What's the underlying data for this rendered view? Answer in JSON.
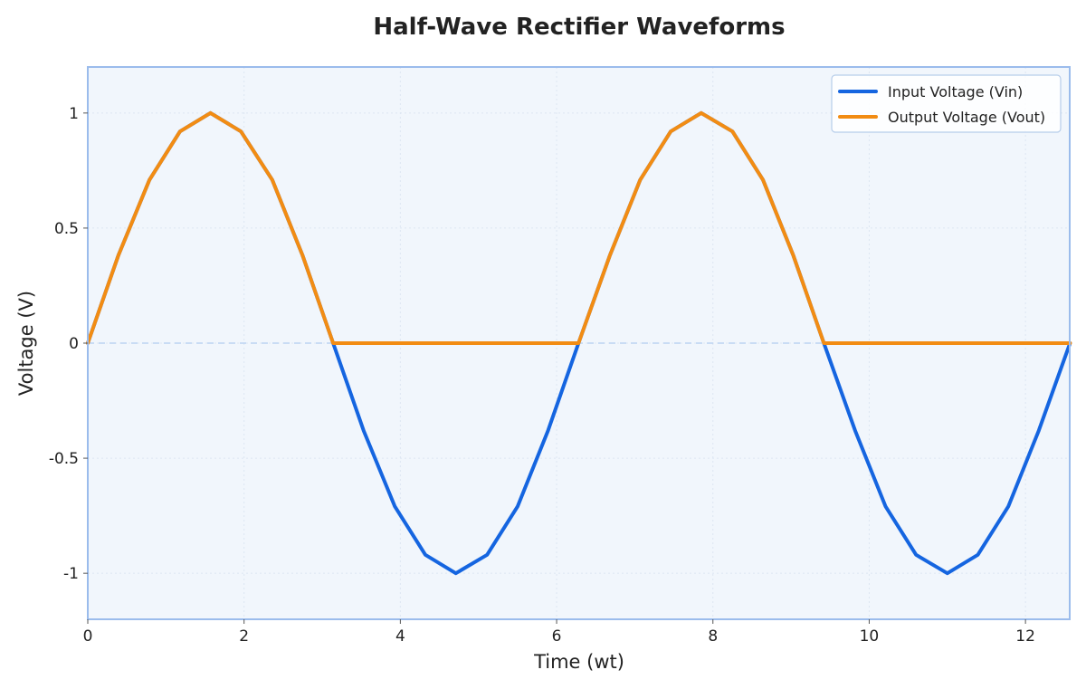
{
  "chart_data": {
    "type": "line",
    "title": "Half-Wave Rectifier Waveforms",
    "xlabel": "Time (wt)",
    "ylabel": "Voltage (V)",
    "xlim": [
      0,
      12.566
    ],
    "ylim": [
      -1.2,
      1.2
    ],
    "x_ticks": [
      0,
      2,
      4,
      6,
      8,
      10,
      12
    ],
    "x_tick_labels": [
      "0",
      "2",
      "4",
      "6",
      "8",
      "10",
      "12"
    ],
    "y_ticks": [
      1,
      0.5,
      0,
      -0.5,
      -1
    ],
    "y_tick_labels": [
      "1",
      "0.5",
      "0",
      "-0.5",
      "-1"
    ],
    "grid": true,
    "zero_reference_line": true,
    "legend_position": "top-right",
    "x": [
      0,
      0.39,
      0.79,
      1.18,
      1.57,
      1.96,
      2.36,
      2.75,
      3.14,
      3.53,
      3.93,
      4.32,
      4.71,
      5.11,
      5.5,
      5.89,
      6.28,
      6.68,
      7.07,
      7.46,
      7.85,
      8.25,
      8.64,
      9.03,
      9.42,
      9.82,
      10.21,
      10.6,
      11.0,
      11.39,
      11.78,
      12.17,
      12.57
    ],
    "series": [
      {
        "name": "Input Voltage (Vin)",
        "color": "#1565e0",
        "values": [
          0,
          0.38,
          0.71,
          0.92,
          1.0,
          0.92,
          0.71,
          0.38,
          0,
          -0.38,
          -0.71,
          -0.92,
          -1.0,
          -0.92,
          -0.71,
          -0.38,
          0,
          0.38,
          0.71,
          0.92,
          1.0,
          0.92,
          0.71,
          0.38,
          0,
          -0.38,
          -0.71,
          -0.92,
          -1.0,
          -0.92,
          -0.71,
          -0.38,
          0
        ]
      },
      {
        "name": "Output Voltage (Vout)",
        "color": "#f28c13",
        "values": [
          0,
          0.38,
          0.71,
          0.92,
          1.0,
          0.92,
          0.71,
          0.38,
          0,
          0,
          0,
          0,
          0,
          0,
          0,
          0,
          0,
          0.38,
          0.71,
          0.92,
          1.0,
          0.92,
          0.71,
          0.38,
          0,
          0,
          0,
          0,
          0,
          0,
          0,
          0,
          0
        ]
      }
    ],
    "colors": {
      "plot_background": "#f1f6fc",
      "plot_border": "#9bbcec",
      "grid": "#dde6f2",
      "zero_line": "#bcd3f1"
    }
  }
}
